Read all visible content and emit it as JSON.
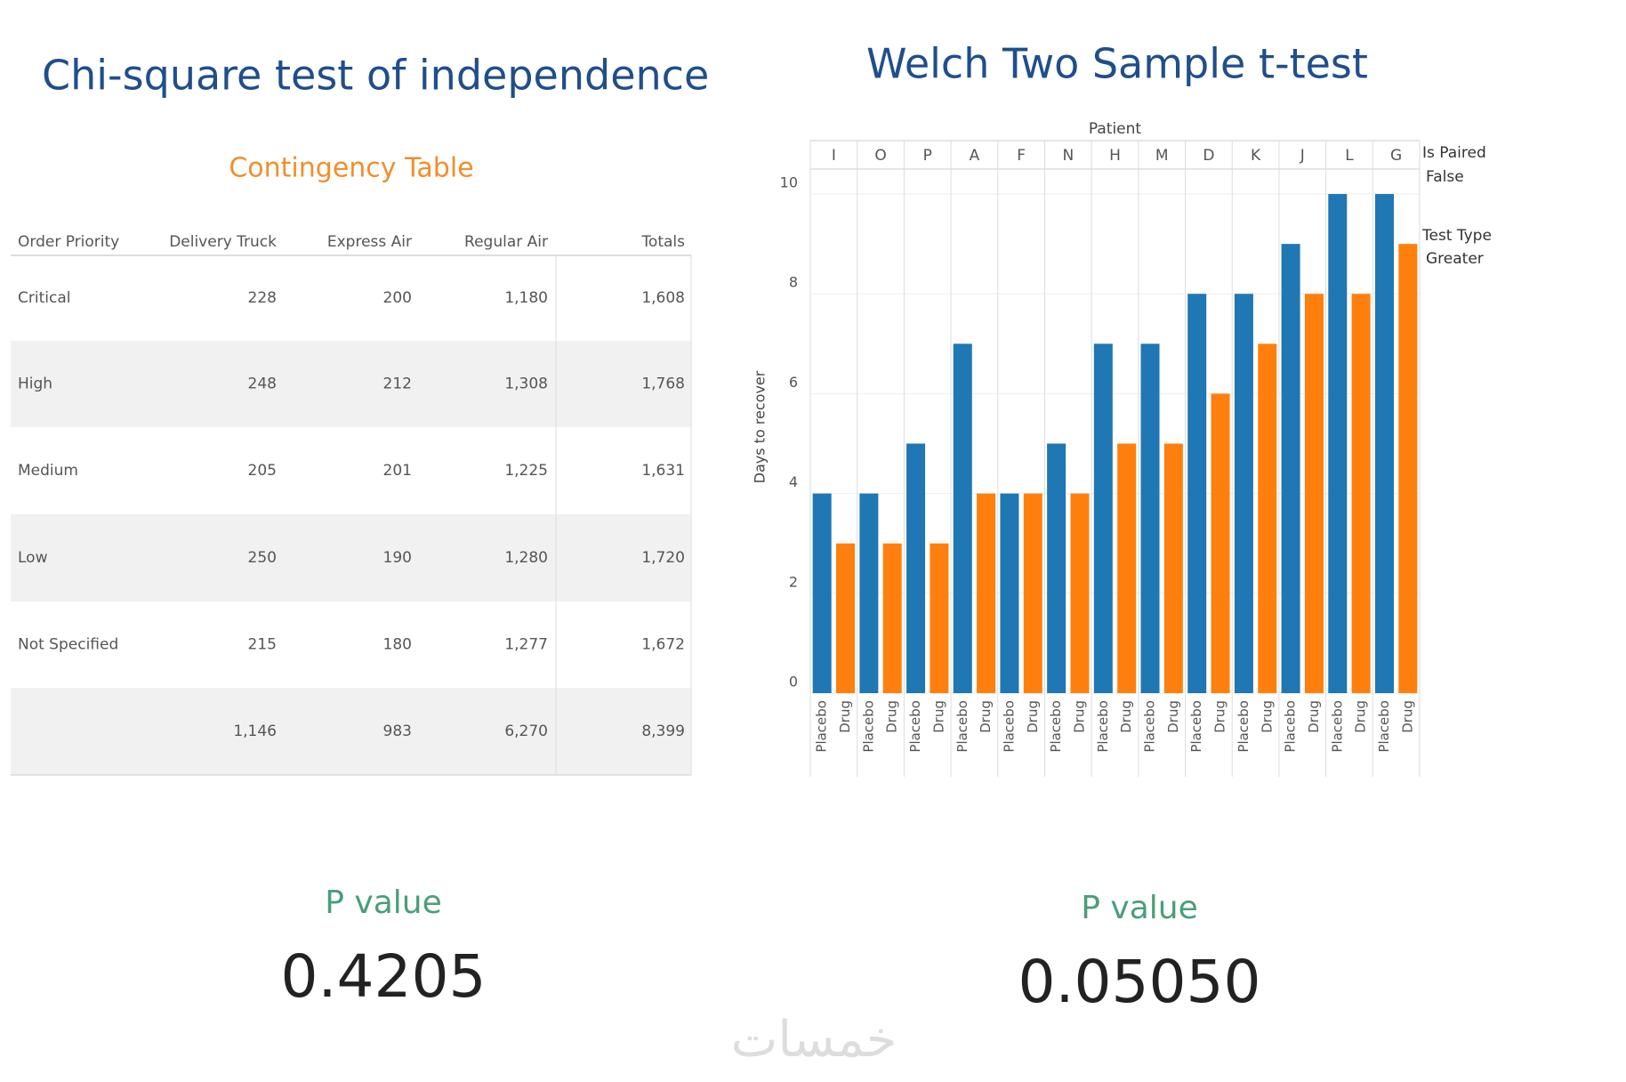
{
  "left": {
    "title": "Chi-square test of independence",
    "table": {
      "title": "Contingency Table",
      "headers": [
        "Order Priority",
        "Delivery Truck",
        "Express Air",
        "Regular Air",
        "Totals"
      ],
      "rows": [
        [
          "Critical",
          "228",
          "200",
          "1,180",
          "1,608"
        ],
        [
          "High",
          "248",
          "212",
          "1,308",
          "1,768"
        ],
        [
          "Medium",
          "205",
          "201",
          "1,225",
          "1,631"
        ],
        [
          "Low",
          "250",
          "190",
          "1,280",
          "1,720"
        ],
        [
          "Not Specified",
          "215",
          "180",
          "1,277",
          "1,672"
        ],
        [
          null,
          "1,146",
          "983",
          "6,270",
          "8,399"
        ]
      ]
    },
    "p_label": "P value",
    "p_value": "0.4205"
  },
  "right": {
    "p_label": "P value",
    "p_value": "0.05050"
  },
  "chart_data": {
    "type": "bar",
    "title": "Welch Two Sample t-test",
    "x_label": "Patient",
    "y_label": "Days to recover",
    "categories": [
      "I",
      "O",
      "P",
      "A",
      "F",
      "N",
      "H",
      "M",
      "D",
      "K",
      "J",
      "L",
      "G"
    ],
    "series": [
      {
        "name": "Placebo",
        "color": "#1f77b4",
        "values": [
          4,
          4,
          5,
          7,
          4,
          5,
          7,
          7,
          8,
          8,
          9,
          10,
          10
        ]
      },
      {
        "name": "Drug",
        "color": "#ff7f0e",
        "values": [
          3,
          3,
          3,
          4,
          4,
          4,
          5,
          5,
          6,
          7,
          8,
          8,
          9
        ]
      }
    ],
    "ylim": [
      0,
      10.5
    ],
    "yticks": [
      0,
      2,
      4,
      6,
      8,
      10
    ],
    "grid": true,
    "filters": [
      {
        "name": "Is Paired",
        "value": "False"
      },
      {
        "name": "Test Type",
        "value": "Greater"
      }
    ]
  },
  "watermark": "خمسات"
}
